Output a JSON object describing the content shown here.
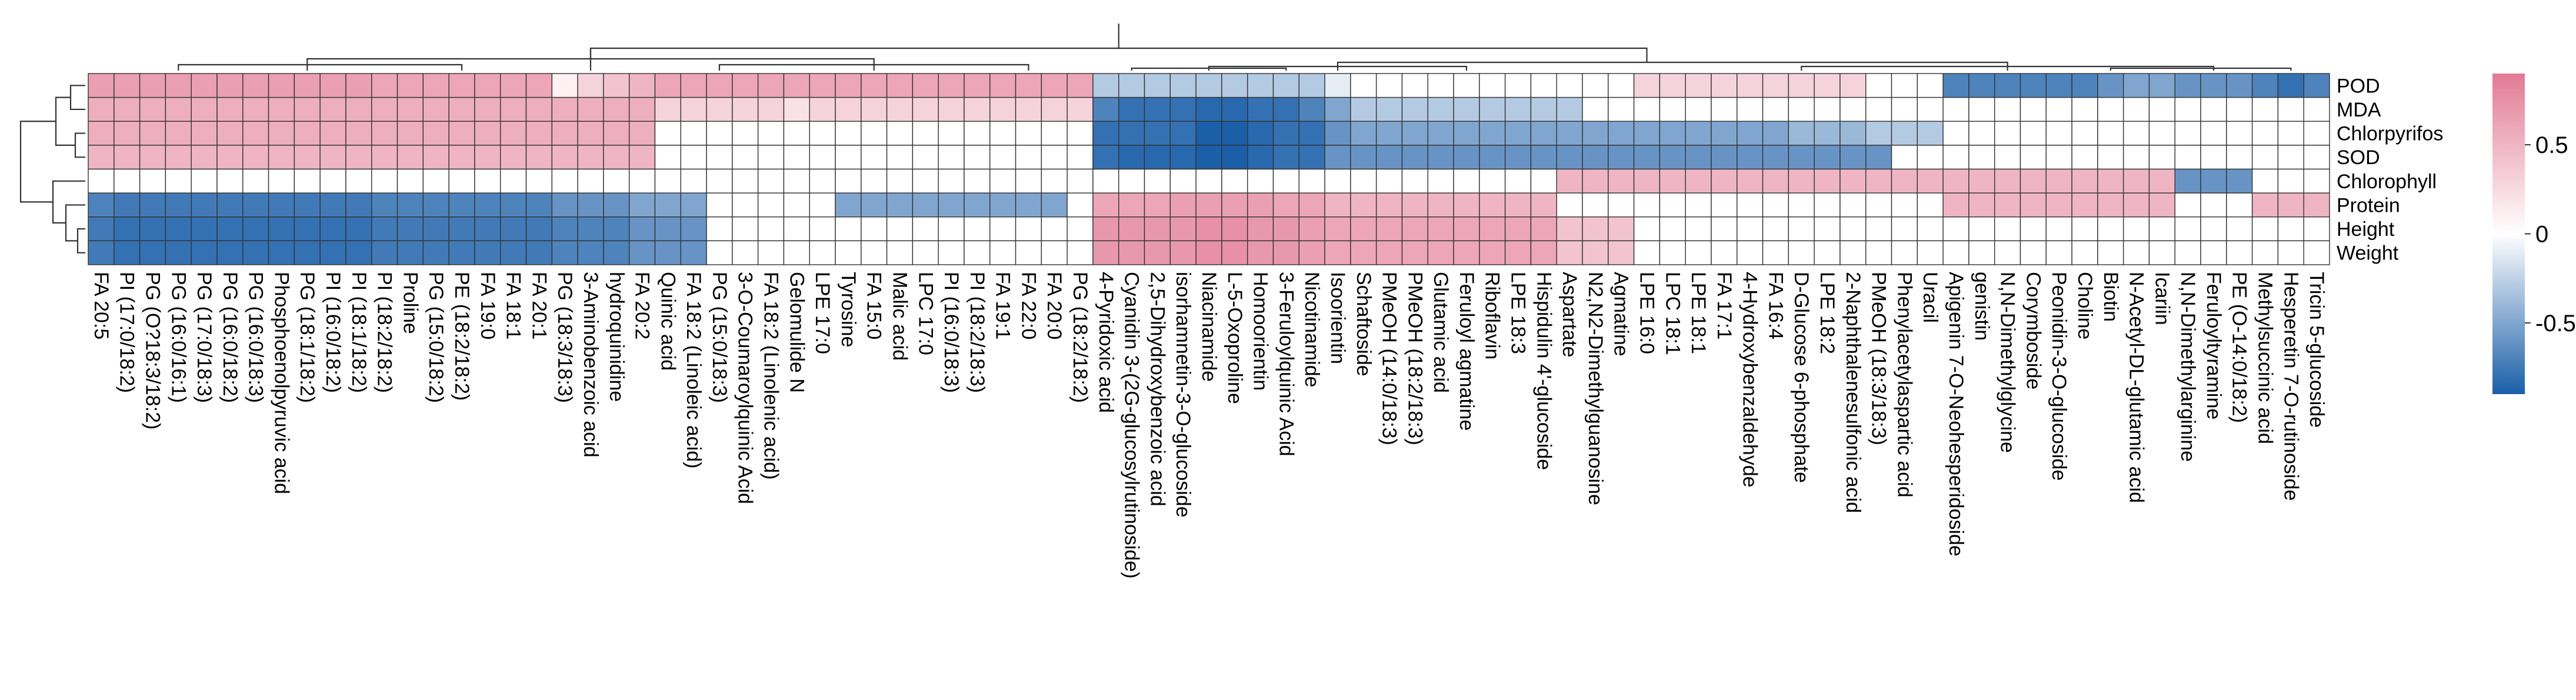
{
  "chart_data": {
    "type": "heatmap",
    "title": "",
    "rows": [
      "POD",
      "MDA",
      "Chlorpyrifos",
      "SOD",
      "Chlorophyll",
      "Protein",
      "Height",
      "Weight"
    ],
    "columns": [
      "FA 20:5",
      "PI (17:0/18:2)",
      "PG (O?18:3/18:2)",
      "PG (16:0/16:1)",
      "PG (17:0/18:3)",
      "PG (16:0/18:2)",
      "PG (16:0/18:3)",
      "Phosphoenolpyruvic acid",
      "PG (18:1/18:2)",
      "PI (16:0/18:2)",
      "PI (18:1/18:2)",
      "PI (18:2/18:2)",
      "Proline",
      "PG (15:0/18:2)",
      "PE (18:2/18:2)",
      "FA 19:0",
      "FA 18:1",
      "FA 20:1",
      "PG (18:3/18:3)",
      "3-Aminobenzoic acid",
      "hydroquinidine",
      "FA 20:2",
      "Quinic acid",
      "FA 18:2 (Linoleic acid)",
      "PG (15:0/18:3)",
      "3-O-Coumaroylquinic Acid",
      "FA 18:2 (Linolenic acid)",
      "Gelomulide N",
      "LPE 17:0",
      "Tyrosine",
      "FA 15:0",
      "Malic acid",
      "LPC 17:0",
      "PI (16:0/18:3)",
      "PI (18:2/18:3)",
      "FA 19:1",
      "FA 22:0",
      "FA 20:0",
      "PG (18:2/18:2)",
      "4-Pyridoxic acid",
      "Cyanidin 3-(2G-glucosylrutinoside)",
      "2,5-Dihydroxybenzoic acid",
      "isorhamnetin-3-O-glucoside",
      "Niacinamide",
      "L-5-Oxoproline",
      "Homoorientin",
      "3-Feruloylquinic Acid",
      "Nicotinamide",
      "Isoorientin",
      "Schaftoside",
      "PMeOH (14:0/18:3)",
      "PMeOH (18:2/18:3)",
      "Glutamic acid",
      "Feruloyl agmatine",
      "Riboflavin",
      "LPE 18:3",
      "Hispidulin 4'-glucoside",
      "Aspartate",
      "N2,N2-Dimethylguanosine",
      "Agmatine",
      "LPE 16:0",
      "LPC 18:1",
      "LPE 18:1",
      "FA 17:1",
      "4-Hydroxybenzaldehyde",
      "FA 16:4",
      "D-Glucose 6-phosphate",
      "LPE 18:2",
      "2-Naphthalenesulfonic acid",
      "PMeOH (18:3/18:3)",
      "Phenylacetylaspartic acid",
      "Uracil",
      "Apigenin 7-O-Neohesperidoside",
      "genistin",
      "N,N-Dimethylglycine",
      "Corymboside",
      "Peonidin-3-O-glucoside",
      "Choline",
      "Biotin",
      "N-Acetyl-DL-glutamic acid",
      "Icariin",
      "N,N-Dimethylarginine",
      "Feruloyltyramine",
      "PE (O-14:0/18:2)",
      "Methylsuccinic acid",
      "Hesperetin 7-O-rutinoside",
      "Tricin 5-glucoside"
    ],
    "value_matrix_note": "values are approximate correlations read from the colour scale, rows x columns",
    "values": [
      [
        0.65,
        0.65,
        0.65,
        0.65,
        0.65,
        0.65,
        0.65,
        0.65,
        0.65,
        0.65,
        0.65,
        0.6,
        0.6,
        0.6,
        0.6,
        0.6,
        0.6,
        0.6,
        0.1,
        0.3,
        0.4,
        0.5,
        0.6,
        0.6,
        0.6,
        0.6,
        0.6,
        0.6,
        0.6,
        0.6,
        0.6,
        0.6,
        0.6,
        0.6,
        0.6,
        0.6,
        0.6,
        0.6,
        0.6,
        -0.3,
        -0.3,
        -0.3,
        -0.3,
        -0.3,
        -0.3,
        -0.3,
        -0.3,
        -0.3,
        -0.1,
        0,
        0,
        0,
        0,
        0,
        0,
        0,
        0,
        0,
        0,
        0,
        0.3,
        0.3,
        0.3,
        0.3,
        0.3,
        0.3,
        0.3,
        0.3,
        0.3,
        0,
        0,
        0,
        -0.7,
        -0.7,
        -0.7,
        -0.7,
        -0.7,
        -0.7,
        -0.6,
        -0.5,
        -0.5,
        -0.6,
        -0.6,
        -0.6,
        -0.7,
        -0.8,
        -0.7
      ],
      [
        0.55,
        0.55,
        0.55,
        0.55,
        0.55,
        0.55,
        0.55,
        0.55,
        0.55,
        0.55,
        0.55,
        0.55,
        0.55,
        0.55,
        0.55,
        0.55,
        0.55,
        0.55,
        0.55,
        0.55,
        0.55,
        0.55,
        0.3,
        0.3,
        0.3,
        0.3,
        0.3,
        0.2,
        0.3,
        0.3,
        0.3,
        0.3,
        0.3,
        0.3,
        0.3,
        0.3,
        0.3,
        0.3,
        0.3,
        -0.7,
        -0.8,
        -0.8,
        -0.8,
        -0.85,
        -0.85,
        -0.8,
        -0.8,
        -0.7,
        -0.5,
        -0.3,
        -0.3,
        -0.3,
        -0.3,
        -0.3,
        -0.3,
        -0.3,
        -0.3,
        -0.3,
        0,
        0,
        0,
        0,
        0,
        0,
        0,
        0,
        0,
        0,
        0,
        0,
        0,
        0,
        0,
        0,
        0,
        0,
        0,
        0,
        0,
        0,
        0,
        0,
        0,
        0,
        0,
        0,
        0
      ],
      [
        0.55,
        0.55,
        0.55,
        0.55,
        0.55,
        0.55,
        0.55,
        0.55,
        0.55,
        0.55,
        0.55,
        0.55,
        0.55,
        0.55,
        0.55,
        0.55,
        0.55,
        0.55,
        0.55,
        0.55,
        0.55,
        0.55,
        0,
        0,
        0,
        0,
        0,
        0,
        0,
        0,
        0,
        0,
        0,
        0,
        0,
        0,
        0,
        0,
        0,
        -0.8,
        -0.8,
        -0.8,
        -0.8,
        -0.9,
        -0.9,
        -0.85,
        -0.8,
        -0.8,
        -0.6,
        -0.5,
        -0.5,
        -0.5,
        -0.5,
        -0.5,
        -0.5,
        -0.5,
        -0.5,
        -0.5,
        -0.5,
        -0.5,
        -0.5,
        -0.5,
        -0.5,
        -0.5,
        -0.5,
        -0.5,
        -0.4,
        -0.4,
        -0.4,
        -0.3,
        -0.3,
        -0.3,
        0,
        0,
        0,
        0,
        0,
        0,
        0,
        0,
        0,
        0,
        0,
        0,
        0,
        0,
        0
      ],
      [
        0.5,
        0.5,
        0.5,
        0.5,
        0.5,
        0.5,
        0.5,
        0.5,
        0.5,
        0.5,
        0.5,
        0.5,
        0.5,
        0.5,
        0.5,
        0.5,
        0.5,
        0.5,
        0.5,
        0.5,
        0.5,
        0.5,
        0,
        0,
        0,
        0,
        0,
        0,
        0,
        0,
        0,
        0,
        0,
        0,
        0,
        0,
        0,
        0,
        0,
        -0.8,
        -0.85,
        -0.85,
        -0.85,
        -0.9,
        -0.9,
        -0.85,
        -0.8,
        -0.8,
        -0.6,
        -0.6,
        -0.6,
        -0.6,
        -0.6,
        -0.6,
        -0.6,
        -0.6,
        -0.6,
        -0.6,
        -0.6,
        -0.6,
        -0.6,
        -0.6,
        -0.6,
        -0.6,
        -0.6,
        -0.6,
        -0.6,
        -0.6,
        -0.6,
        -0.6,
        0,
        0,
        0,
        0,
        0,
        0,
        0,
        0,
        0,
        0,
        0,
        0,
        0,
        0,
        0,
        0,
        0
      ],
      [
        0,
        0,
        0,
        0,
        0,
        0,
        0,
        0,
        0,
        0,
        0,
        0,
        0,
        0,
        0,
        0,
        0,
        0,
        0,
        0,
        0,
        0,
        0,
        0,
        0,
        0,
        0,
        0,
        0,
        0,
        0,
        0,
        0,
        0,
        0,
        0,
        0,
        0,
        0,
        0,
        0,
        0,
        0,
        0,
        0,
        0,
        0,
        0,
        0,
        0,
        0,
        0,
        0,
        0,
        0,
        0,
        0,
        0.5,
        0.5,
        0.5,
        0.5,
        0.5,
        0.5,
        0.5,
        0.5,
        0.5,
        0.5,
        0.5,
        0.5,
        0.5,
        0.5,
        0.5,
        0.5,
        0.5,
        0.5,
        0.5,
        0.5,
        0.5,
        0.5,
        0.5,
        0.5,
        -0.6,
        -0.6,
        -0.6,
        0,
        0,
        0
      ],
      [
        -0.7,
        -0.75,
        -0.75,
        -0.75,
        -0.75,
        -0.75,
        -0.75,
        -0.75,
        -0.75,
        -0.75,
        -0.75,
        -0.7,
        -0.7,
        -0.7,
        -0.7,
        -0.7,
        -0.7,
        -0.7,
        -0.6,
        -0.6,
        -0.6,
        -0.5,
        -0.5,
        -0.5,
        0,
        0,
        0,
        0,
        0,
        -0.5,
        -0.5,
        -0.5,
        -0.5,
        -0.5,
        -0.5,
        -0.5,
        -0.5,
        -0.5,
        0,
        0.6,
        0.6,
        0.6,
        0.65,
        0.65,
        0.65,
        0.65,
        0.6,
        0.6,
        0.5,
        0.5,
        0.5,
        0.5,
        0.5,
        0.5,
        0.5,
        0.5,
        0.5,
        0,
        0,
        0,
        0,
        0,
        0,
        0,
        0,
        0,
        0,
        0,
        0,
        0,
        0,
        0,
        0.5,
        0.5,
        0.5,
        0.5,
        0.5,
        0.5,
        0.5,
        0.5,
        0.5,
        0,
        0,
        0,
        0.5,
        0.5,
        0.5
      ],
      [
        -0.75,
        -0.8,
        -0.8,
        -0.8,
        -0.8,
        -0.8,
        -0.8,
        -0.8,
        -0.8,
        -0.8,
        -0.8,
        -0.75,
        -0.75,
        -0.75,
        -0.75,
        -0.75,
        -0.75,
        -0.75,
        -0.7,
        -0.7,
        -0.7,
        -0.6,
        -0.6,
        -0.6,
        0,
        0,
        0,
        0,
        0,
        0,
        0,
        0,
        0,
        0,
        0,
        0,
        0,
        0,
        0,
        0.7,
        0.7,
        0.7,
        0.7,
        0.75,
        0.75,
        0.7,
        0.7,
        0.65,
        0.6,
        0.6,
        0.6,
        0.6,
        0.6,
        0.6,
        0.6,
        0.6,
        0.6,
        0.4,
        0.4,
        0.4,
        0,
        0,
        0,
        0,
        0,
        0,
        0,
        0,
        0,
        0,
        0,
        0,
        0,
        0,
        0,
        0,
        0,
        0,
        0,
        0,
        0,
        0,
        0,
        0,
        0,
        0,
        0
      ],
      [
        -0.75,
        -0.8,
        -0.8,
        -0.8,
        -0.8,
        -0.8,
        -0.8,
        -0.8,
        -0.8,
        -0.8,
        -0.8,
        -0.75,
        -0.75,
        -0.75,
        -0.75,
        -0.75,
        -0.75,
        -0.75,
        -0.7,
        -0.7,
        -0.7,
        -0.6,
        -0.6,
        -0.6,
        0,
        0,
        0,
        0,
        0,
        0,
        0,
        0,
        0,
        0,
        0,
        0,
        0,
        0,
        0,
        0.7,
        0.7,
        0.7,
        0.7,
        0.75,
        0.75,
        0.7,
        0.7,
        0.65,
        0.6,
        0.6,
        0.6,
        0.6,
        0.6,
        0.6,
        0.6,
        0.6,
        0.6,
        0.4,
        0.4,
        0.4,
        0,
        0,
        0,
        0,
        0,
        0,
        0,
        0,
        0,
        0,
        0,
        0,
        0,
        0,
        0,
        0,
        0,
        0,
        0,
        0,
        0,
        0,
        0,
        0,
        0,
        0,
        0
      ]
    ],
    "color_scale": {
      "min": -0.9,
      "max": 0.9,
      "low": "#1b5fa8",
      "mid": "#ffffff",
      "high": "#e27a95"
    },
    "legend": {
      "position": "right",
      "ticks": [
        0.5,
        0,
        -0.5
      ],
      "tick_labels": [
        "0.5",
        "0",
        "-0.5"
      ]
    }
  }
}
